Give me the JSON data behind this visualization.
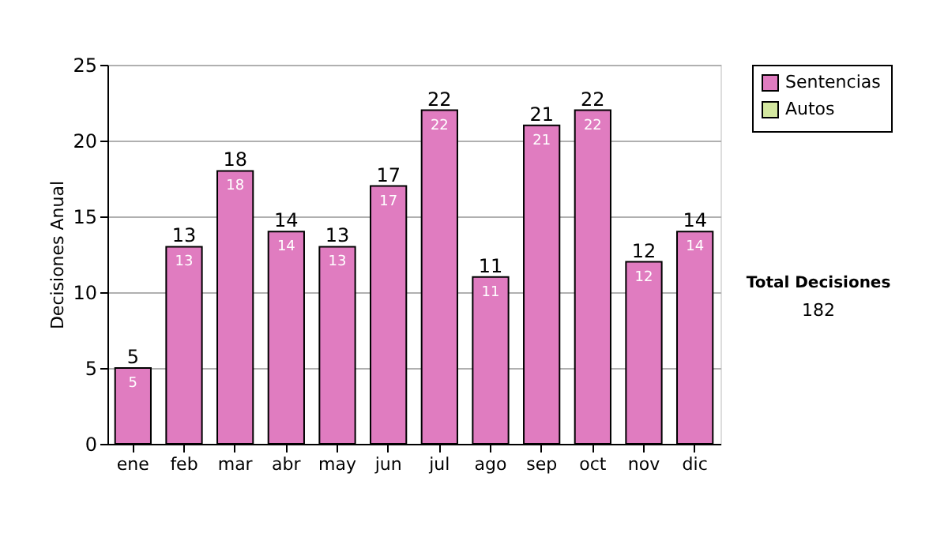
{
  "chart_data": {
    "type": "bar",
    "stacked": true,
    "ylabel": "Decisiones Anual",
    "categories": [
      "ene",
      "feb",
      "mar",
      "abr",
      "may",
      "jun",
      "jul",
      "ago",
      "sep",
      "oct",
      "nov",
      "dic"
    ],
    "series": [
      {
        "name": "Sentencias",
        "color": "#e07cc0",
        "values": [
          5,
          13,
          18,
          14,
          13,
          17,
          22,
          11,
          21,
          22,
          12,
          14
        ],
        "value_labels": [
          "5",
          "13",
          "18",
          "14",
          "13",
          "17",
          "22",
          "11",
          "21",
          "22",
          "12",
          "14"
        ]
      },
      {
        "name": "Autos",
        "color": "#d4e8a0",
        "values": [
          0,
          0,
          0,
          0,
          0,
          0,
          0,
          0,
          0,
          0,
          0,
          0
        ]
      }
    ],
    "totals": [
      "5",
      "13",
      "18",
      "14",
      "13",
      "17",
      "22",
      "11",
      "21",
      "22",
      "12",
      "14"
    ],
    "ylim": [
      0,
      25
    ],
    "yticks": [
      0,
      5,
      10,
      15,
      20,
      25
    ],
    "grid": "y",
    "legend": "right",
    "annotations": [
      "Total Decisiones",
      "182"
    ]
  }
}
